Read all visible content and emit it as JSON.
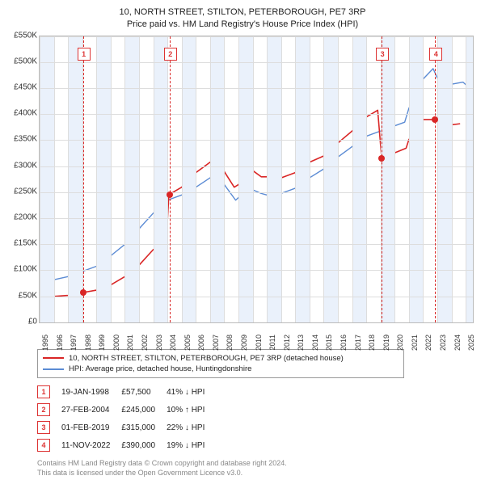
{
  "title_line1": "10, NORTH STREET, STILTON, PETERBOROUGH, PE7 3RP",
  "title_line2": "Price paid vs. HM Land Registry's House Price Index (HPI)",
  "chart": {
    "type": "line",
    "background_color": "#ffffff",
    "grid_color": "#dddddd",
    "shade_color": "#eaf1fb",
    "border_color": "#bbbbbb",
    "x": {
      "min": 1995,
      "max": 2025.5,
      "ticks": [
        1995,
        1996,
        1997,
        1998,
        1999,
        2000,
        2001,
        2002,
        2003,
        2004,
        2005,
        2006,
        2007,
        2008,
        2009,
        2010,
        2011,
        2012,
        2013,
        2014,
        2015,
        2016,
        2017,
        2018,
        2019,
        2020,
        2021,
        2022,
        2023,
        2024,
        2025
      ]
    },
    "y": {
      "min": 0,
      "max": 550,
      "ticks": [
        0,
        50,
        100,
        150,
        200,
        250,
        300,
        350,
        400,
        450,
        500,
        550
      ],
      "prefix": "£",
      "suffix": "K"
    },
    "shaded_year_bands": [
      1995,
      1997,
      1999,
      2001,
      2003,
      2005,
      2007,
      2009,
      2011,
      2013,
      2015,
      2017,
      2019,
      2021,
      2023,
      2025
    ],
    "series": [
      {
        "name": "subject",
        "label": "10, NORTH STREET, STILTON, PETERBOROUGH, PE7 3RP (detached house)",
        "color": "#d92626",
        "width": 1.6,
        "points": [
          [
            1995,
            50
          ],
          [
            1996,
            50
          ],
          [
            1997,
            52
          ],
          [
            1998,
            55
          ],
          [
            1998.05,
            57.5
          ],
          [
            1999,
            62
          ],
          [
            2000,
            72
          ],
          [
            2001,
            88
          ],
          [
            2002,
            110
          ],
          [
            2003,
            140
          ],
          [
            2003.9,
            150
          ],
          [
            2004.1,
            245
          ],
          [
            2004.5,
            252
          ],
          [
            2005,
            260
          ],
          [
            2006,
            288
          ],
          [
            2007,
            308
          ],
          [
            2007.6,
            315
          ],
          [
            2008,
            290
          ],
          [
            2008.7,
            260
          ],
          [
            2009,
            265
          ],
          [
            2009.5,
            285
          ],
          [
            2010,
            292
          ],
          [
            2010.6,
            280
          ],
          [
            2011,
            280
          ],
          [
            2012,
            278
          ],
          [
            2013,
            288
          ],
          [
            2014,
            308
          ],
          [
            2015,
            320
          ],
          [
            2016,
            345
          ],
          [
            2017,
            368
          ],
          [
            2018,
            395
          ],
          [
            2018.8,
            408
          ],
          [
            2019.08,
            315
          ],
          [
            2019.5,
            320
          ],
          [
            2020,
            326
          ],
          [
            2020.8,
            335
          ],
          [
            2021,
            352
          ],
          [
            2021.7,
            368
          ],
          [
            2022,
            390
          ],
          [
            2022.85,
            390
          ],
          [
            2023,
            388
          ],
          [
            2024,
            380
          ],
          [
            2024.6,
            382
          ]
        ]
      },
      {
        "name": "hpi",
        "label": "HPI: Average price, detached house, Huntingdonshire",
        "color": "#5b8bd4",
        "width": 1.4,
        "points": [
          [
            1995,
            82
          ],
          [
            1996,
            82
          ],
          [
            1997,
            88
          ],
          [
            1998,
            98
          ],
          [
            1999,
            108
          ],
          [
            2000,
            128
          ],
          [
            2001,
            150
          ],
          [
            2002,
            180
          ],
          [
            2003,
            210
          ],
          [
            2004,
            235
          ],
          [
            2005,
            245
          ],
          [
            2006,
            260
          ],
          [
            2007,
            278
          ],
          [
            2007.7,
            288
          ],
          [
            2008,
            265
          ],
          [
            2008.8,
            235
          ],
          [
            2009,
            240
          ],
          [
            2010,
            255
          ],
          [
            2010.6,
            248
          ],
          [
            2011,
            245
          ],
          [
            2012,
            248
          ],
          [
            2013,
            258
          ],
          [
            2014,
            278
          ],
          [
            2015,
            295
          ],
          [
            2016,
            318
          ],
          [
            2017,
            338
          ],
          [
            2018,
            358
          ],
          [
            2019,
            368
          ],
          [
            2020,
            378
          ],
          [
            2020.7,
            385
          ],
          [
            2021,
            412
          ],
          [
            2021.8,
            445
          ],
          [
            2022,
            468
          ],
          [
            2022.7,
            488
          ],
          [
            2023,
            470
          ],
          [
            2023.6,
            455
          ],
          [
            2024,
            458
          ],
          [
            2024.8,
            462
          ],
          [
            2025.3,
            450
          ]
        ]
      }
    ],
    "markers": [
      {
        "n": "1",
        "x": 1998.05,
        "y": 57.5,
        "boxTop": 14
      },
      {
        "n": "2",
        "x": 2004.15,
        "y": 245,
        "boxTop": 14
      },
      {
        "n": "3",
        "x": 2019.08,
        "y": 315,
        "boxTop": 14
      },
      {
        "n": "4",
        "x": 2022.85,
        "y": 390,
        "boxTop": 14
      }
    ],
    "dash_color": "#d92626"
  },
  "legend": [
    {
      "color": "#d92626",
      "text": "10, NORTH STREET, STILTON, PETERBOROUGH, PE7 3RP (detached house)"
    },
    {
      "color": "#5b8bd4",
      "text": "HPI: Average price, detached house, Huntingdonshire"
    }
  ],
  "events": [
    {
      "n": "1",
      "date": "19-JAN-1998",
      "price": "£57,500",
      "delta": "41% ↓ HPI"
    },
    {
      "n": "2",
      "date": "27-FEB-2004",
      "price": "£245,000",
      "delta": "10% ↑ HPI"
    },
    {
      "n": "3",
      "date": "01-FEB-2019",
      "price": "£315,000",
      "delta": "22% ↓ HPI"
    },
    {
      "n": "4",
      "date": "11-NOV-2022",
      "price": "£390,000",
      "delta": "19% ↓ HPI"
    }
  ],
  "footer_line1": "Contains HM Land Registry data © Crown copyright and database right 2024.",
  "footer_line2": "This data is licensed under the Open Government Licence v3.0."
}
